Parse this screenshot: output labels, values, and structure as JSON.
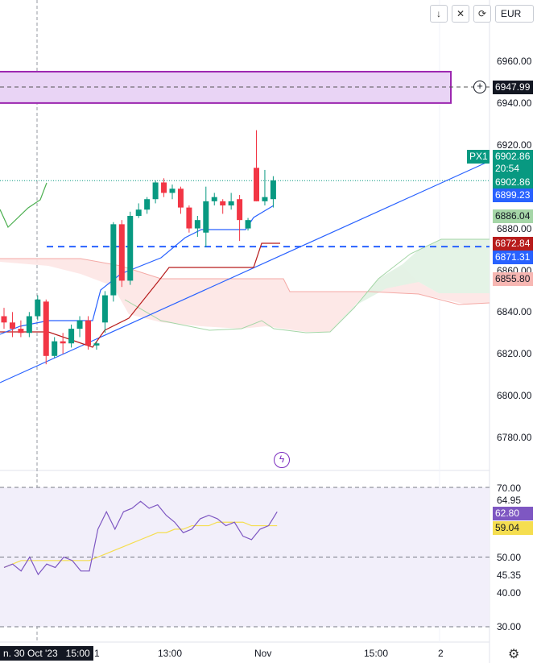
{
  "toolbar": {
    "down_icon": "↓",
    "collapse_icon": "✕",
    "reset_icon": "⟳",
    "currency": "EUR"
  },
  "price_axis": {
    "ticks": [
      "6960.00",
      "6940.00",
      "6920.00",
      "6880.00",
      "6860.00",
      "6840.00",
      "6820.00",
      "6800.00",
      "6780.00"
    ]
  },
  "price_tags": {
    "zone_price": "6947.99",
    "symbol": "PX1",
    "last_price": "6902.86",
    "countdown": "20:54",
    "last_price_2": "6902.86",
    "blue_ma": "6899.23",
    "green_level": "6886.04",
    "red_level": "6872.84",
    "dashed_level": "6871.31",
    "cloud_bottom": "6855.80"
  },
  "rsi_axis": {
    "ticks": [
      "70.00",
      "64.95",
      "50.00",
      "45.35",
      "40.00",
      "30.00"
    ],
    "rsi_value": "62.80",
    "rsi_ma_value": "59.04"
  },
  "time_axis": {
    "crosshair_label": "n. 30 Oct '23   15:00",
    "labels": [
      "1",
      "13:00",
      "Nov",
      "15:00",
      "2"
    ]
  },
  "colors": {
    "up": "#089981",
    "down": "#f23645",
    "zone_fill": "#e9d4f5",
    "zone_border": "#9c27b0",
    "trendline": "#2962ff",
    "rsi_line": "#7e57c2",
    "rsi_ma": "#f5de50",
    "cloud_red": "#fde6e4",
    "cloud_green": "#e3f2e5"
  },
  "chart_data": {
    "type": "candlestick",
    "ylim": [
      6770,
      6970
    ],
    "candles": [
      {
        "o": 6838,
        "h": 6842,
        "l": 6832,
        "c": 6835
      },
      {
        "o": 6835,
        "h": 6840,
        "l": 6828,
        "c": 6832
      },
      {
        "o": 6832,
        "h": 6836,
        "l": 6828,
        "c": 6830
      },
      {
        "o": 6830,
        "h": 6840,
        "l": 6828,
        "c": 6838
      },
      {
        "o": 6838,
        "h": 6848,
        "l": 6836,
        "c": 6846
      },
      {
        "o": 6845,
        "h": 6846,
        "l": 6815,
        "c": 6819
      },
      {
        "o": 6819,
        "h": 6828,
        "l": 6818,
        "c": 6826
      },
      {
        "o": 6826,
        "h": 6830,
        "l": 6820,
        "c": 6825
      },
      {
        "o": 6825,
        "h": 6834,
        "l": 6823,
        "c": 6832
      },
      {
        "o": 6832,
        "h": 6838,
        "l": 6828,
        "c": 6836
      },
      {
        "o": 6836,
        "h": 6838,
        "l": 6822,
        "c": 6824
      },
      {
        "o": 6824,
        "h": 6826,
        "l": 6822,
        "c": 6825
      },
      {
        "o": 6835,
        "h": 6850,
        "l": 6830,
        "c": 6848
      },
      {
        "o": 6848,
        "h": 6883,
        "l": 6845,
        "c": 6882
      },
      {
        "o": 6882,
        "h": 6884,
        "l": 6852,
        "c": 6855
      },
      {
        "o": 6855,
        "h": 6888,
        "l": 6853,
        "c": 6886
      },
      {
        "o": 6886,
        "h": 6892,
        "l": 6885,
        "c": 6889
      },
      {
        "o": 6889,
        "h": 6895,
        "l": 6887,
        "c": 6894
      },
      {
        "o": 6894,
        "h": 6903,
        "l": 6892,
        "c": 6902
      },
      {
        "o": 6902,
        "h": 6904,
        "l": 6895,
        "c": 6897
      },
      {
        "o": 6897,
        "h": 6901,
        "l": 6894,
        "c": 6899
      },
      {
        "o": 6899,
        "h": 6900,
        "l": 6887,
        "c": 6890
      },
      {
        "o": 6890,
        "h": 6891,
        "l": 6878,
        "c": 6880
      },
      {
        "o": 6880,
        "h": 6886,
        "l": 6876,
        "c": 6884
      },
      {
        "o": 6878,
        "h": 6900,
        "l": 6871,
        "c": 6893
      },
      {
        "o": 6893,
        "h": 6897,
        "l": 6891,
        "c": 6895
      },
      {
        "o": 6893,
        "h": 6894,
        "l": 6887,
        "c": 6891
      },
      {
        "o": 6891,
        "h": 6897,
        "l": 6889,
        "c": 6893
      },
      {
        "o": 6894,
        "h": 6896,
        "l": 6874,
        "c": 6884
      },
      {
        "o": 6880,
        "h": 6885,
        "l": 6879,
        "c": 6884
      },
      {
        "o": 6909,
        "h": 6927,
        "l": 6893,
        "c": 6893
      },
      {
        "o": 6893,
        "h": 6908,
        "l": 6891,
        "c": 6895
      },
      {
        "o": 6894,
        "h": 6905,
        "l": 6890,
        "c": 6903
      }
    ],
    "resistance_zone": [
      6940,
      6955
    ],
    "dashed_level": 6871.31,
    "rsi": [
      47,
      48,
      46,
      50,
      45,
      48,
      47,
      50,
      49,
      46,
      46,
      58,
      63,
      58,
      63,
      64,
      66,
      64,
      65,
      62,
      60,
      57,
      58,
      61,
      62,
      61,
      59,
      60,
      56,
      55,
      58,
      59,
      63
    ],
    "rsi_ma": [
      47,
      48,
      49,
      49,
      49,
      49,
      49,
      49,
      49,
      49,
      49,
      50,
      51,
      52,
      53,
      54,
      55,
      56,
      57,
      57,
      58,
      58,
      59,
      59,
      59,
      60,
      60,
      60,
      60,
      59,
      59,
      59,
      59
    ],
    "rsi_ylim": [
      30,
      70
    ]
  }
}
